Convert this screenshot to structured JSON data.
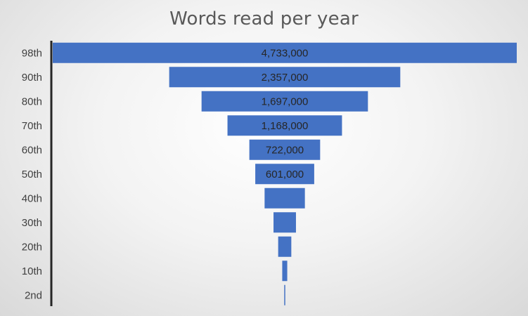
{
  "chart_data": {
    "type": "bar",
    "subtype": "funnel",
    "title": "Words read per year",
    "categories": [
      "98th",
      "90th",
      "80th",
      "70th",
      "60th",
      "50th",
      "40th",
      "30th",
      "20th",
      "10th",
      "2nd"
    ],
    "values": [
      4733000,
      2357000,
      1697000,
      1168000,
      722000,
      601000,
      411000,
      229000,
      134000,
      51000,
      8000
    ],
    "value_labels": [
      "4,733,000",
      "2,357,000",
      "1,697,000",
      "1,168,000",
      "722,000",
      "601,000",
      "",
      "",
      "",
      "",
      ""
    ],
    "bar_color": "#4472c4",
    "grid": false,
    "legend": "none"
  }
}
